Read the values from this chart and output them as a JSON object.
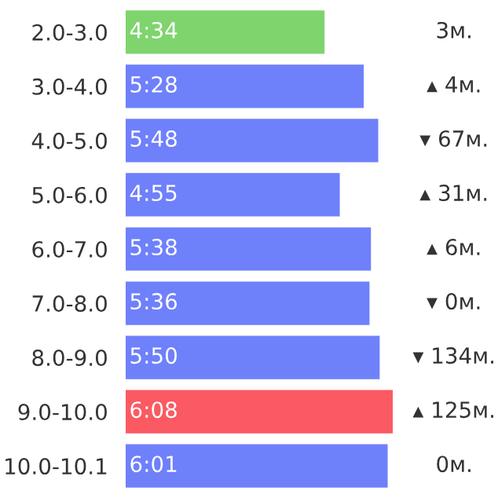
{
  "chart_data": {
    "type": "bar",
    "orientation": "horizontal",
    "categories": [
      "2.0-3.0",
      "3.0-4.0",
      "4.0-5.0",
      "5.0-6.0",
      "6.0-7.0",
      "7.0-8.0",
      "8.0-9.0",
      "9.0-10.0",
      "10.0-10.1"
    ],
    "values": [
      4.5667,
      5.4667,
      5.8,
      4.9167,
      5.6333,
      5.6,
      5.8333,
      6.1333,
      6.0167
    ],
    "colors": [
      "#7fd46e",
      "#6f80fb",
      "#6f80fb",
      "#6f80fb",
      "#6f80fb",
      "#6f80fb",
      "#6f80fb",
      "#fb5a62",
      "#6f80fb"
    ],
    "value_labels": [
      "4:34",
      "5:28",
      "5:48",
      "4:55",
      "5:38",
      "5:36",
      "5:50",
      "6:08",
      "6:01"
    ],
    "annotations": [
      "3м.",
      "▴ 4м.",
      "▾ 67м.",
      "▴ 31м.",
      "▴ 6м.",
      "▾ 0м.",
      "▾ 134м.",
      "▴ 125м.",
      "0м."
    ]
  }
}
